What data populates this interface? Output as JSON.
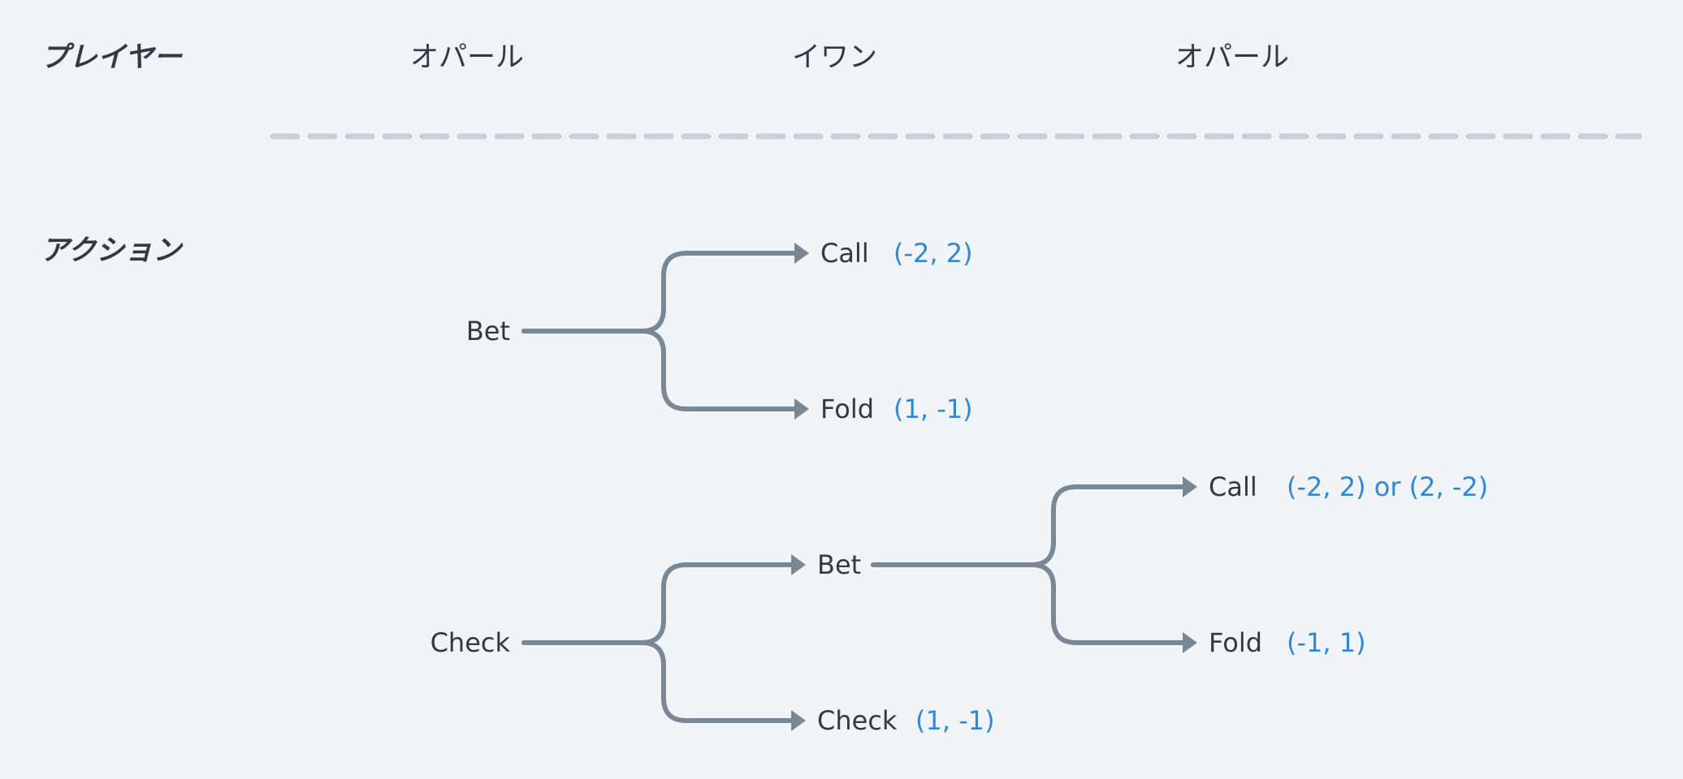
{
  "labels": {
    "players_row": "プレイヤー",
    "actions_row": "アクション"
  },
  "players": [
    "オパール",
    "イワン",
    "オパール"
  ],
  "tree": {
    "bet": {
      "label": "Bet",
      "call": {
        "label": "Call",
        "payoff": "(-2, 2)"
      },
      "fold": {
        "label": "Fold",
        "payoff": "(1, -1)"
      }
    },
    "check": {
      "label": "Check",
      "bet": {
        "label": "Bet",
        "call": {
          "label": "Call",
          "payoff": "(-2, 2) or (2, -2)"
        },
        "fold": {
          "label": "Fold",
          "payoff": "(-1, 1)"
        }
      },
      "check": {
        "label": "Check",
        "payoff": "(1, -1)"
      }
    }
  },
  "colors": {
    "background": "#f0f4f7",
    "text": "#2f3a45",
    "payoff": "#2f88d6",
    "edge": "#7a8794",
    "divider": "#c9d1d8"
  }
}
